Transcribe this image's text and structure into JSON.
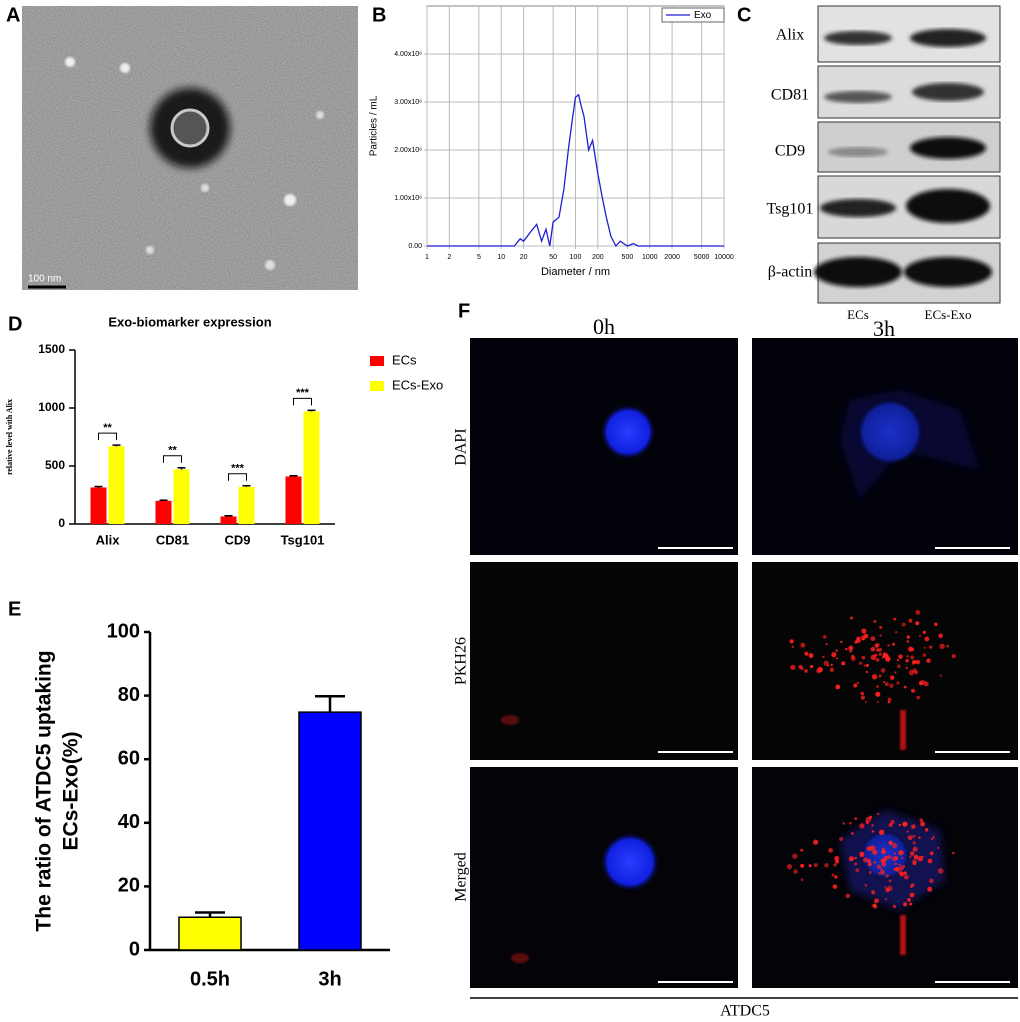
{
  "panel_a": {
    "letter": "A",
    "scale_bar": "100 nm"
  },
  "chart_data": [
    {
      "type": "line",
      "label": "B",
      "xlabel": "Diameter / nm",
      "ylabel": "Particles / mL",
      "xscale": "log",
      "xlim": [
        1,
        10000
      ],
      "xticks": [
        1,
        2,
        5,
        10,
        20,
        50,
        100,
        200,
        500,
        1000,
        2000,
        5000,
        10000
      ],
      "ylim": [
        0,
        5000000
      ],
      "yticks": [
        {
          "value": 0,
          "label": "0.00"
        },
        {
          "value": 1000000,
          "label": "1.00x10⁶"
        },
        {
          "value": 2000000,
          "label": "2.00x10⁶"
        },
        {
          "value": 3000000,
          "label": "3.00x10⁶"
        },
        {
          "value": 4000000,
          "label": "4.00x10⁶"
        }
      ],
      "grid": true,
      "legend": "upper right",
      "x": [
        1,
        15,
        18,
        20,
        25,
        30,
        35,
        40,
        45,
        50,
        60,
        70,
        80,
        90,
        100,
        110,
        120,
        130,
        150,
        170,
        200,
        230,
        260,
        300,
        350,
        400,
        500,
        600,
        700,
        1000,
        10000
      ],
      "series": [
        {
          "name": "Exo",
          "color": "#1f1fd6",
          "values": [
            0,
            0,
            150000,
            100000,
            300000,
            450000,
            100000,
            350000,
            0,
            500000,
            600000,
            1200000,
            2000000,
            2600000,
            3100000,
            3150000,
            2900000,
            2700000,
            2000000,
            2200000,
            1500000,
            1000000,
            600000,
            200000,
            0,
            100000,
            0,
            50000,
            0,
            0,
            0
          ]
        }
      ]
    },
    {
      "type": "bar",
      "label": "D",
      "title": "Exo-biomarker expression",
      "ylabel": "relative level with Alix",
      "categories": [
        "Alix",
        "CD81",
        "CD9",
        "Tsg101"
      ],
      "series": [
        {
          "name": "ECs",
          "color": "#ff0000",
          "values": [
            315,
            200,
            65,
            410
          ],
          "errors": [
            8,
            5,
            6,
            6
          ]
        },
        {
          "name": "ECs-Exo",
          "color": "#ffff00",
          "values": [
            670,
            470,
            320,
            970
          ],
          "errors": [
            10,
            15,
            10,
            10
          ]
        }
      ],
      "annotations": [
        "**",
        "**",
        "***",
        "***"
      ],
      "ylim": [
        0,
        1500
      ],
      "yticks": [
        0,
        500,
        1000,
        1500
      ],
      "legend": "right"
    },
    {
      "type": "bar",
      "label": "E",
      "ylabel": [
        "The ratio of ATDC5 uptaking",
        "ECs-Exo(%)"
      ],
      "categories": [
        "0.5h",
        "3h"
      ],
      "values": [
        10.3,
        74.8
      ],
      "errors": [
        1.5,
        5
      ],
      "colors": [
        "#ffff00",
        "#0000ff"
      ],
      "ylim": [
        0,
        100
      ],
      "yticks": [
        0,
        20,
        40,
        60,
        80,
        100
      ]
    }
  ],
  "panel_c": {
    "letter": "C",
    "rows": [
      "Alix",
      "CD81",
      "CD9",
      "Tsg101",
      "β-actin"
    ],
    "columns": [
      "ECs",
      "ECs-Exo"
    ]
  },
  "panel_f": {
    "letter": "F",
    "columns": [
      "0h",
      "3h"
    ],
    "rows": [
      "DAPI",
      "PKH26",
      "Merged"
    ],
    "caption": "ATDC5"
  }
}
